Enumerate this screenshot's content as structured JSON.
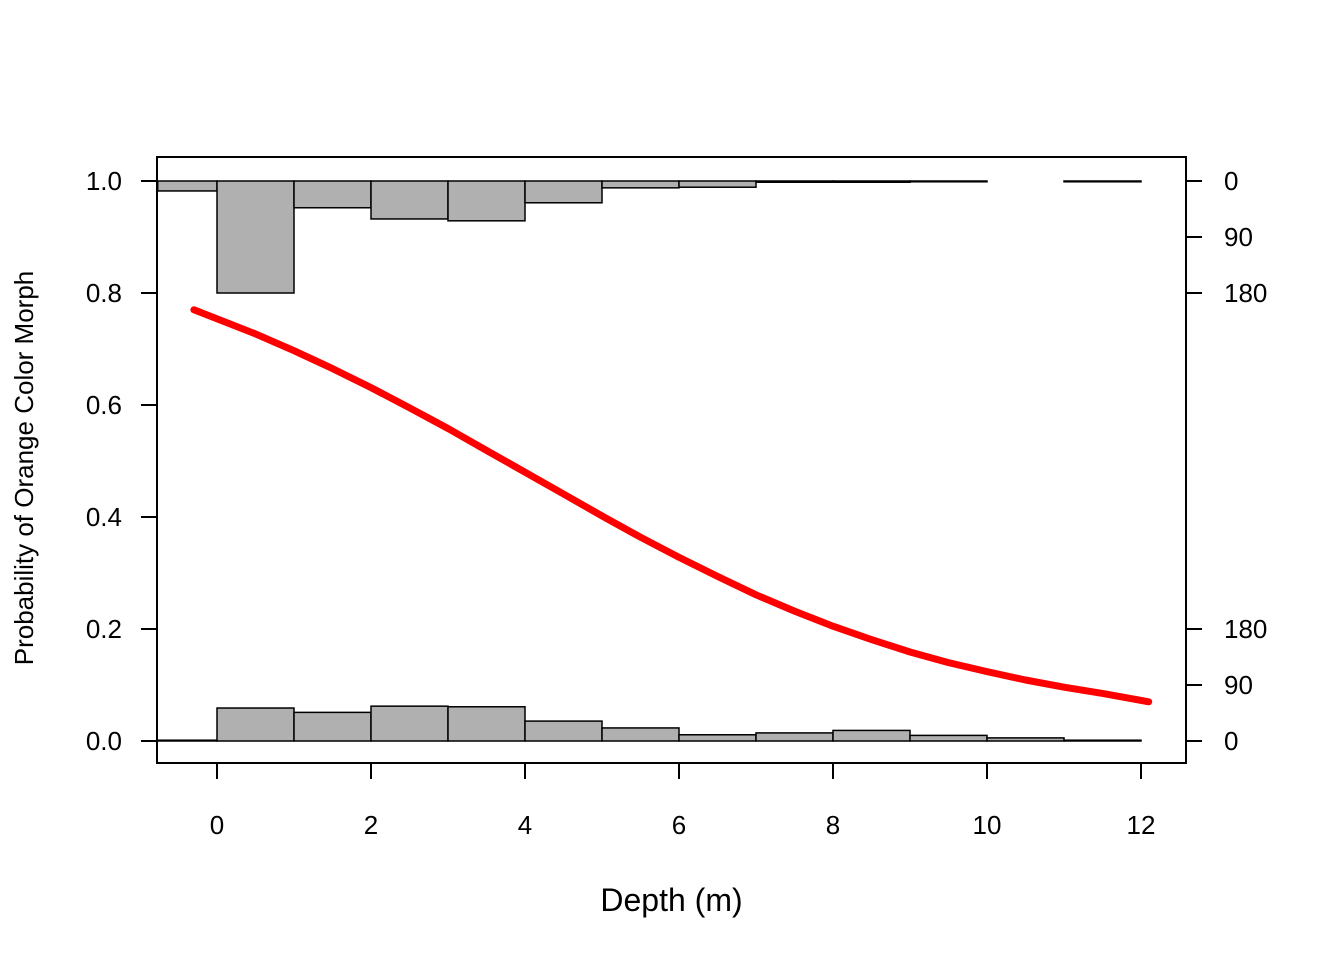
{
  "chart_data": {
    "type": "line",
    "title": "",
    "xlabel": "Depth (m)",
    "ylabel": "Probability of Orange Color Morph",
    "xlim": [
      -0.77,
      12.6
    ],
    "ylim": [
      -0.04,
      1.04
    ],
    "x_ticks": [
      0,
      2,
      4,
      6,
      8,
      10,
      12
    ],
    "y_ticks": [
      0.0,
      0.2,
      0.4,
      0.6,
      0.8,
      1.0
    ],
    "y_tick_labels": [
      "0.0",
      "0.2",
      "0.4",
      "0.6",
      "0.8",
      "1.0"
    ],
    "right_axis": {
      "top_ticks": [
        0,
        90,
        180
      ],
      "bottom_ticks": [
        0,
        90,
        180
      ],
      "units_per_probability": 900
    },
    "grid": false,
    "legend": "none",
    "series": [
      {
        "kind": "fitted-curve",
        "color": "#ff0000",
        "x": [
          -0.3,
          0.5,
          1.0,
          1.5,
          2.0,
          2.5,
          3.0,
          3.5,
          4.0,
          4.5,
          5.0,
          5.5,
          6.0,
          6.5,
          7.0,
          7.5,
          8.0,
          8.5,
          9.0,
          9.5,
          10.0,
          10.5,
          11.0,
          11.5,
          12.1
        ],
        "values": [
          0.77,
          0.727,
          0.697,
          0.665,
          0.631,
          0.595,
          0.558,
          0.519,
          0.48,
          0.441,
          0.402,
          0.364,
          0.328,
          0.294,
          0.261,
          0.232,
          0.205,
          0.181,
          0.159,
          0.14,
          0.124,
          0.109,
          0.096,
          0.085,
          0.07
        ]
      }
    ],
    "histogram_top": {
      "color": "#b0b0b0",
      "bins": [
        [
          -0.77,
          0
        ],
        [
          0,
          1
        ],
        [
          1,
          2
        ],
        [
          2,
          3
        ],
        [
          3,
          4
        ],
        [
          4,
          5
        ],
        [
          5,
          6
        ],
        [
          6,
          7
        ],
        [
          7,
          8
        ],
        [
          8,
          9
        ],
        [
          9,
          10
        ],
        [
          11,
          12
        ]
      ],
      "counts": [
        16,
        180,
        43,
        61,
        64,
        35,
        11,
        10,
        2,
        2,
        1,
        1
      ]
    },
    "histogram_bottom": {
      "color": "#b0b0b0",
      "bins": [
        [
          -0.77,
          0
        ],
        [
          0,
          1
        ],
        [
          1,
          2
        ],
        [
          2,
          3
        ],
        [
          3,
          4
        ],
        [
          4,
          5
        ],
        [
          5,
          6
        ],
        [
          6,
          7
        ],
        [
          7,
          8
        ],
        [
          8,
          9
        ],
        [
          9,
          10
        ],
        [
          10,
          11
        ],
        [
          11,
          12
        ]
      ],
      "counts": [
        1,
        53,
        46,
        56,
        55,
        32,
        21,
        10,
        13,
        17,
        9,
        5,
        1
      ]
    }
  }
}
